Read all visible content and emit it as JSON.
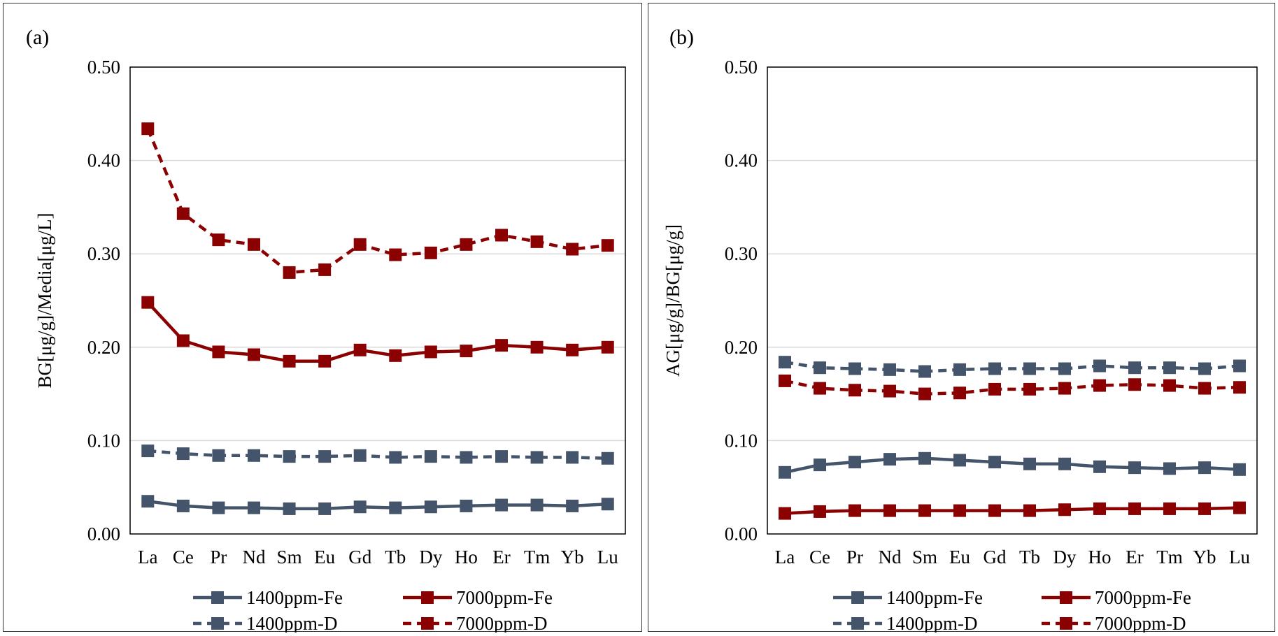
{
  "chart_data": [
    {
      "type": "line",
      "panel_label": "(a)",
      "ylabel": "BG[μg/g]/Media[μg/L]",
      "xlabel": "",
      "ylim": [
        0,
        0.5
      ],
      "yticks": [
        "0.00",
        "0.10",
        "0.20",
        "0.30",
        "0.40",
        "0.50"
      ],
      "grid": true,
      "legend_position": "bottom",
      "categories": [
        "La",
        "Ce",
        "Pr",
        "Nd",
        "Sm",
        "Eu",
        "Gd",
        "Tb",
        "Dy",
        "Ho",
        "Er",
        "Tm",
        "Yb",
        "Lu"
      ],
      "series": [
        {
          "name": "1400ppm-Fe",
          "color": "#44546a",
          "dash": false,
          "values": [
            0.035,
            0.03,
            0.028,
            0.028,
            0.027,
            0.027,
            0.029,
            0.028,
            0.029,
            0.03,
            0.031,
            0.031,
            0.03,
            0.032
          ]
        },
        {
          "name": "7000ppm-Fe",
          "color": "#8b0000",
          "dash": false,
          "values": [
            0.248,
            0.207,
            0.195,
            0.192,
            0.185,
            0.185,
            0.197,
            0.191,
            0.195,
            0.196,
            0.202,
            0.2,
            0.197,
            0.2
          ]
        },
        {
          "name": "1400ppm-D",
          "color": "#44546a",
          "dash": true,
          "values": [
            0.089,
            0.086,
            0.084,
            0.084,
            0.083,
            0.083,
            0.084,
            0.082,
            0.083,
            0.082,
            0.083,
            0.082,
            0.082,
            0.081
          ]
        },
        {
          "name": "7000ppm-D",
          "color": "#8b0000",
          "dash": true,
          "values": [
            0.434,
            0.343,
            0.315,
            0.31,
            0.28,
            0.283,
            0.31,
            0.299,
            0.301,
            0.31,
            0.32,
            0.313,
            0.305,
            0.309
          ]
        }
      ]
    },
    {
      "type": "line",
      "panel_label": "(b)",
      "ylabel": "AG[μg/g]/BG[μg/g]",
      "xlabel": "",
      "ylim": [
        0,
        0.5
      ],
      "yticks": [
        "0.00",
        "0.10",
        "0.20",
        "0.30",
        "0.40",
        "0.50"
      ],
      "grid": true,
      "legend_position": "bottom",
      "categories": [
        "La",
        "Ce",
        "Pr",
        "Nd",
        "Sm",
        "Eu",
        "Gd",
        "Tb",
        "Dy",
        "Ho",
        "Er",
        "Tm",
        "Yb",
        "Lu"
      ],
      "series": [
        {
          "name": "1400ppm-Fe",
          "color": "#44546a",
          "dash": false,
          "values": [
            0.066,
            0.074,
            0.077,
            0.08,
            0.081,
            0.079,
            0.077,
            0.075,
            0.075,
            0.072,
            0.071,
            0.07,
            0.071,
            0.069
          ]
        },
        {
          "name": "7000ppm-Fe",
          "color": "#8b0000",
          "dash": false,
          "values": [
            0.022,
            0.024,
            0.025,
            0.025,
            0.025,
            0.025,
            0.025,
            0.025,
            0.026,
            0.027,
            0.027,
            0.027,
            0.027,
            0.028
          ]
        },
        {
          "name": "1400ppm-D",
          "color": "#44546a",
          "dash": true,
          "values": [
            0.184,
            0.178,
            0.177,
            0.176,
            0.174,
            0.176,
            0.177,
            0.177,
            0.177,
            0.18,
            0.178,
            0.178,
            0.177,
            0.18
          ]
        },
        {
          "name": "7000ppm-D",
          "color": "#8b0000",
          "dash": true,
          "values": [
            0.164,
            0.156,
            0.154,
            0.153,
            0.15,
            0.151,
            0.155,
            0.155,
            0.156,
            0.159,
            0.16,
            0.159,
            0.156,
            0.157
          ]
        }
      ]
    }
  ]
}
